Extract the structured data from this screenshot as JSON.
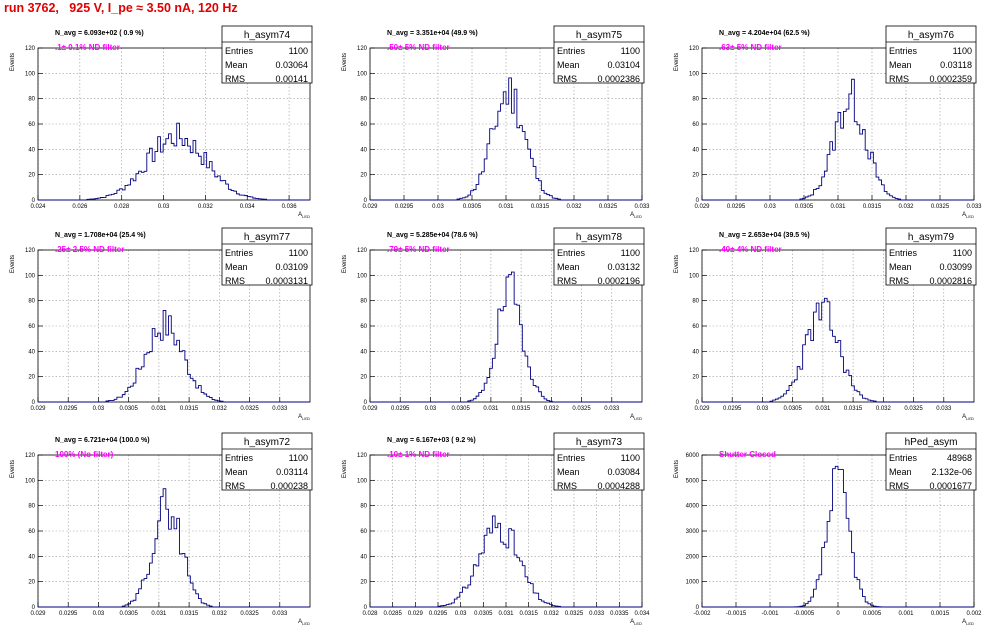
{
  "header": {
    "title": "run 3762,   925 V, I_pe ≈ 3.50 nA, 120 Hz"
  },
  "colors": {
    "title": "#e00000",
    "hist_line": "#000080",
    "annotation": "#ff00ff",
    "grid": "#999999",
    "axes": "#000000"
  },
  "chart_data": [
    {
      "type": "bar",
      "name": "h_asym74",
      "navg": "N_avg = 6.093e+02 ( 0.9 %)",
      "filter": ".1± 0.1% ND filter",
      "stats": {
        "entries": "1100",
        "mean": "0.03064",
        "rms": "0.00141"
      },
      "xlabel": "A_LED",
      "ylabel": "Events",
      "xlim": [
        0.024,
        0.037
      ],
      "ylim": [
        0,
        120
      ],
      "xticks": [
        "0.024",
        "0.026",
        "0.028",
        "0.03",
        "0.032",
        "0.034",
        "0.036"
      ],
      "xtickvals": [
        0.024,
        0.026,
        0.028,
        0.03,
        0.032,
        0.034,
        0.036
      ],
      "yticks": [
        "0",
        "20",
        "40",
        "60",
        "80",
        "100",
        "120"
      ],
      "yvals": [
        0,
        20,
        40,
        60,
        80,
        100,
        120
      ],
      "mean_v": 0.03064,
      "sigma_v": 0.00141,
      "peak": 50,
      "seed": 7
    },
    {
      "type": "bar",
      "name": "h_asym75",
      "navg": "N_avg = 3.351e+04 (49.9 %)",
      "filter": ".50± 5% ND filter",
      "stats": {
        "entries": "1100",
        "mean": "0.03104",
        "rms": "0.0002386"
      },
      "xlabel": "A_LED",
      "ylabel": "Events",
      "xlim": [
        0.029,
        0.033
      ],
      "ylim": [
        0,
        120
      ],
      "xticks": [
        "0.029",
        "0.0295",
        "0.03",
        "0.0305",
        "0.031",
        "0.0315",
        "0.032",
        "0.0325",
        "0.033"
      ],
      "xtickvals": [
        0.029,
        0.0295,
        0.03,
        0.0305,
        0.031,
        0.0315,
        0.032,
        0.0325,
        0.033
      ],
      "yticks": [
        "0",
        "20",
        "40",
        "60",
        "80",
        "100",
        "120"
      ],
      "yvals": [
        0,
        20,
        40,
        60,
        80,
        100,
        120
      ],
      "mean_v": 0.03104,
      "sigma_v": 0.0002386,
      "peak": 85,
      "seed": 11
    },
    {
      "type": "bar",
      "name": "h_asym76",
      "navg": "N_avg = 4.204e+04 (62.5 %)",
      "filter": ".63± 5% ND filter",
      "stats": {
        "entries": "1100",
        "mean": "0.03118",
        "rms": "0.0002359"
      },
      "xlabel": "A_LED",
      "ylabel": "Events",
      "xlim": [
        0.029,
        0.033
      ],
      "ylim": [
        0,
        120
      ],
      "xticks": [
        "0.029",
        "0.0295",
        "0.03",
        "0.0305",
        "0.031",
        "0.0315",
        "0.032",
        "0.0325",
        "0.033"
      ],
      "xtickvals": [
        0.029,
        0.0295,
        0.03,
        0.0305,
        0.031,
        0.0315,
        0.032,
        0.0325,
        0.033
      ],
      "yticks": [
        "0",
        "20",
        "40",
        "60",
        "80",
        "100",
        "120"
      ],
      "yvals": [
        0,
        20,
        40,
        60,
        80,
        100,
        120
      ],
      "mean_v": 0.03118,
      "sigma_v": 0.0002359,
      "peak": 80,
      "seed": 13
    },
    {
      "type": "bar",
      "name": "h_asym77",
      "navg": "N_avg = 1.708e+04 (25.4 %)",
      "filter": ".25± 2.5% ND filter",
      "stats": {
        "entries": "1100",
        "mean": "0.03109",
        "rms": "0.0003131"
      },
      "xlabel": "A_LED",
      "ylabel": "Events",
      "xlim": [
        0.029,
        0.0335
      ],
      "ylim": [
        0,
        120
      ],
      "xticks": [
        "0.029",
        "0.0295",
        "0.03",
        "0.0305",
        "0.031",
        "0.0315",
        "0.032",
        "0.0325",
        "0.033"
      ],
      "xtickvals": [
        0.029,
        0.0295,
        0.03,
        0.0305,
        0.031,
        0.0315,
        0.032,
        0.0325,
        0.033
      ],
      "yticks": [
        "0",
        "20",
        "40",
        "60",
        "80",
        "100",
        "120"
      ],
      "yvals": [
        0,
        20,
        40,
        60,
        80,
        100,
        120
      ],
      "mean_v": 0.03109,
      "sigma_v": 0.0003131,
      "peak": 62,
      "seed": 17
    },
    {
      "type": "bar",
      "name": "h_asym78",
      "navg": "N_avg = 5.285e+04 (78.6 %)",
      "filter": ".79± 5% ND filter",
      "stats": {
        "entries": "1100",
        "mean": "0.03132",
        "rms": "0.0002196"
      },
      "xlabel": "A_LED",
      "ylabel": "Events",
      "xlim": [
        0.029,
        0.0335
      ],
      "ylim": [
        0,
        120
      ],
      "xticks": [
        "0.029",
        "0.0295",
        "0.03",
        "0.0305",
        "0.031",
        "0.0315",
        "0.032",
        "0.0325",
        "0.033"
      ],
      "xtickvals": [
        0.029,
        0.0295,
        0.03,
        0.0305,
        0.031,
        0.0315,
        0.032,
        0.0325,
        0.033
      ],
      "yticks": [
        "0",
        "20",
        "40",
        "60",
        "80",
        "100",
        "120"
      ],
      "yvals": [
        0,
        20,
        40,
        60,
        80,
        100,
        120
      ],
      "mean_v": 0.03132,
      "sigma_v": 0.0002196,
      "peak": 86,
      "seed": 19
    },
    {
      "type": "bar",
      "name": "h_asym79",
      "navg": "N_avg = 2.653e+04 (39.5 %)",
      "filter": ".40± 4% ND filter",
      "stats": {
        "entries": "1100",
        "mean": "0.03099",
        "rms": "0.0002816"
      },
      "xlabel": "A_LED",
      "ylabel": "Events",
      "xlim": [
        0.029,
        0.0335
      ],
      "ylim": [
        0,
        120
      ],
      "xticks": [
        "0.029",
        "0.0295",
        "0.03",
        "0.0305",
        "0.031",
        "0.0315",
        "0.032",
        "0.0325",
        "0.033"
      ],
      "xtickvals": [
        0.029,
        0.0295,
        0.03,
        0.0305,
        0.031,
        0.0315,
        0.032,
        0.0325,
        0.033
      ],
      "yticks": [
        "0",
        "20",
        "40",
        "60",
        "80",
        "100",
        "120"
      ],
      "yvals": [
        0,
        20,
        40,
        60,
        80,
        100,
        120
      ],
      "mean_v": 0.03099,
      "sigma_v": 0.0002816,
      "peak": 70,
      "seed": 23
    },
    {
      "type": "bar",
      "name": "h_asym72",
      "navg": "N_avg = 6.721e+04 (100.0 %)",
      "filter": "100% (No filter)",
      "stats": {
        "entries": "1100",
        "mean": "0.03114",
        "rms": "0.000238"
      },
      "xlabel": "A_LED",
      "ylabel": "Events",
      "xlim": [
        0.029,
        0.0335
      ],
      "ylim": [
        0,
        120
      ],
      "xticks": [
        "0.029",
        "0.0295",
        "0.03",
        "0.0305",
        "0.031",
        "0.0315",
        "0.032",
        "0.0325",
        "0.033"
      ],
      "xtickvals": [
        0.029,
        0.0295,
        0.03,
        0.0305,
        0.031,
        0.0315,
        0.032,
        0.0325,
        0.033
      ],
      "yticks": [
        "0",
        "20",
        "40",
        "60",
        "80",
        "100",
        "120"
      ],
      "yvals": [
        0,
        20,
        40,
        60,
        80,
        100,
        120
      ],
      "mean_v": 0.03114,
      "sigma_v": 0.000238,
      "peak": 80,
      "seed": 29
    },
    {
      "type": "bar",
      "name": "h_asym73",
      "navg": "N_avg = 6.167e+03 ( 9.2 %)",
      "filter": ".10± 1% ND filter",
      "stats": {
        "entries": "1100",
        "mean": "0.03084",
        "rms": "0.0004288"
      },
      "xlabel": "A_LED",
      "ylabel": "Events",
      "xlim": [
        0.028,
        0.034
      ],
      "ylim": [
        0,
        120
      ],
      "xticks": [
        "0.028",
        "0.0285",
        "0.029",
        "0.0295",
        "0.03",
        "0.0305",
        "0.031",
        "0.0315",
        "0.032",
        "0.0325",
        "0.033",
        "0.0335",
        "0.034"
      ],
      "xtickvals": [
        0.028,
        0.0285,
        0.029,
        0.0295,
        0.03,
        0.0305,
        0.031,
        0.0315,
        0.032,
        0.0325,
        0.033,
        0.0335,
        0.034
      ],
      "yticks": [
        "0",
        "20",
        "40",
        "60",
        "80",
        "100",
        "120"
      ],
      "yvals": [
        0,
        20,
        40,
        60,
        80,
        100,
        120
      ],
      "mean_v": 0.03084,
      "sigma_v": 0.0004288,
      "peak": 65,
      "seed": 31
    },
    {
      "type": "bar",
      "name": "hPed_asym",
      "navg": "",
      "filter": "Shutter Closed",
      "stats": {
        "entries": "48968",
        "mean": "2.132e-06",
        "rms": "0.0001677"
      },
      "xlabel": "A_LED",
      "ylabel": "Events",
      "xlim": [
        -0.002,
        0.002
      ],
      "ylim": [
        0,
        6000
      ],
      "xticks": [
        "-0.002",
        "-0.0015",
        "-0.001",
        "-0.0005",
        "0",
        "0.0005",
        "0.001",
        "0.0015",
        "0.002"
      ],
      "xtickvals": [
        -0.002,
        -0.0015,
        -0.001,
        -0.0005,
        0,
        0.0005,
        0.001,
        0.0015,
        0.002
      ],
      "yticks": [
        "0",
        "1000",
        "2000",
        "3000",
        "4000",
        "5000",
        "6000"
      ],
      "yvals": [
        0,
        1000,
        2000,
        3000,
        4000,
        5000,
        6000
      ],
      "mean_v": 2.132e-06,
      "sigma_v": 0.0001677,
      "peak": 4850,
      "seed": 37
    }
  ]
}
